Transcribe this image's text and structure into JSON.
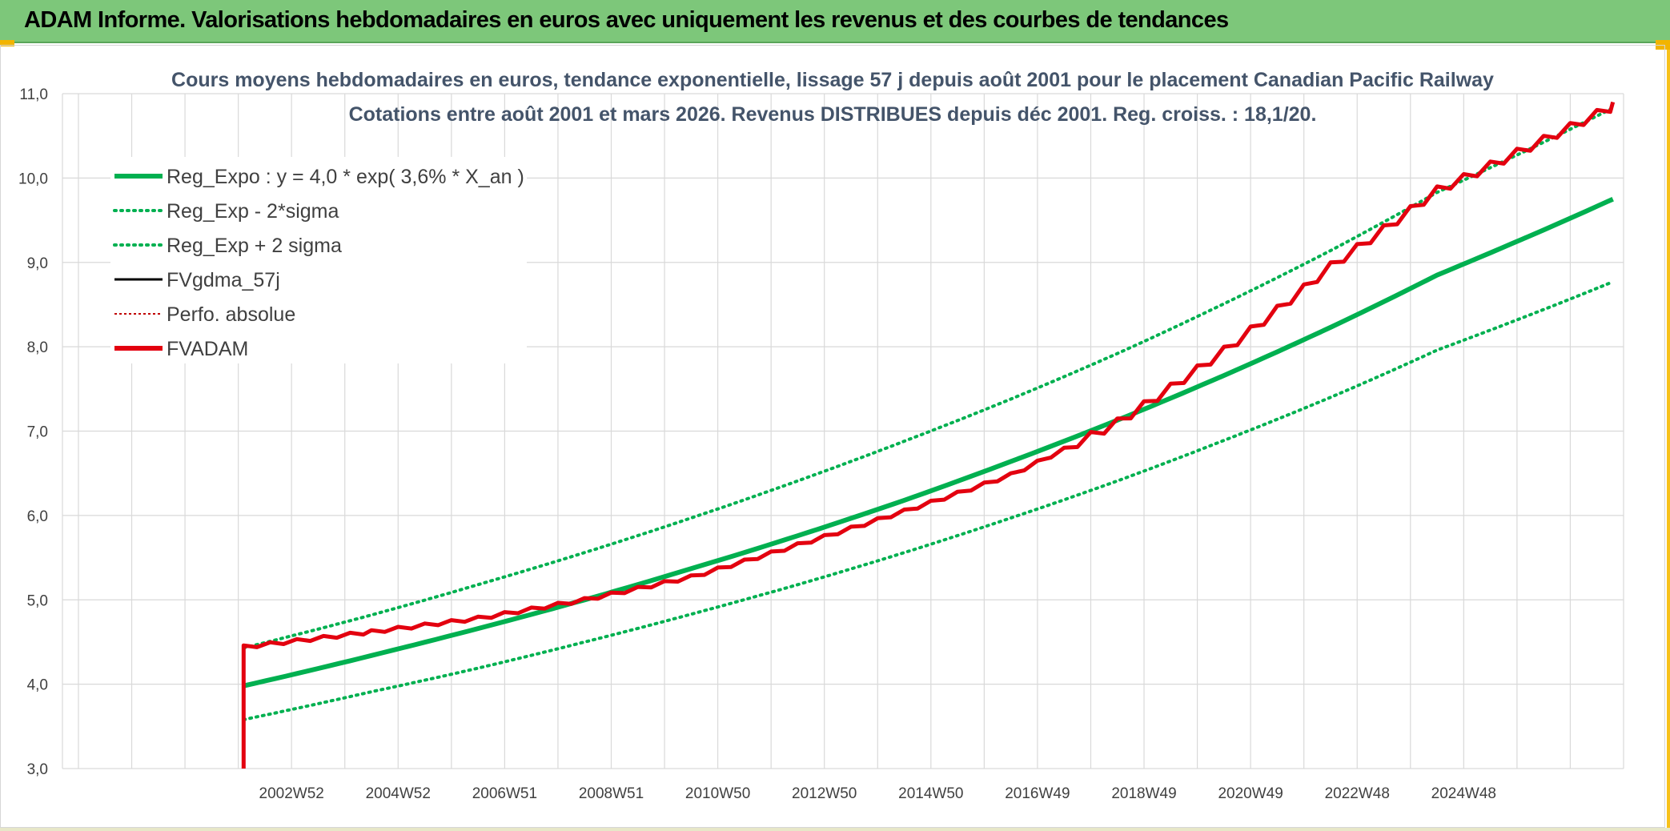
{
  "header": {
    "title": "ADAM Informe. Valorisations hebdomadaires en euros avec uniquement les revenus et des courbes de tendances"
  },
  "colors": {
    "banner": "#7dc77a",
    "reg": "#00b050",
    "fvadam": "#e3000f",
    "perf": "#c00000",
    "grid": "#d9d9d9"
  },
  "chart_data": {
    "type": "line",
    "title": [
      "Cours moyens hebdomadaires en euros, tendance exponentielle, lissage 57 j depuis août 2001 pour le placement Canadian Pacific Railway",
      "Cotations entre août 2001 et mars 2026. Revenus DISTRIBUES depuis déc 2001. Reg. croiss. : 18,1/20."
    ],
    "xlabel": "",
    "ylabel": "",
    "ylim": [
      3.0,
      11.0
    ],
    "xlim": [
      1998.2,
      2027.5
    ],
    "y_ticks": [
      "3,0",
      "4,0",
      "5,0",
      "6,0",
      "7,0",
      "8,0",
      "9,0",
      "10,0",
      "11,0"
    ],
    "x_ticks": [
      {
        "label": "2002W52",
        "x": 2002.5
      },
      {
        "label": "2004W52",
        "x": 2004.5
      },
      {
        "label": "2006W51",
        "x": 2006.5
      },
      {
        "label": "2008W51",
        "x": 2008.5
      },
      {
        "label": "2010W50",
        "x": 2010.5
      },
      {
        "label": "2012W50",
        "x": 2012.5
      },
      {
        "label": "2014W50",
        "x": 2014.5
      },
      {
        "label": "2016W49",
        "x": 2016.5
      },
      {
        "label": "2018W49",
        "x": 2018.5
      },
      {
        "label": "2020W49",
        "x": 2020.5
      },
      {
        "label": "2022W48",
        "x": 2022.5
      },
      {
        "label": "2024W48",
        "x": 2024.5
      }
    ],
    "legend": [
      {
        "label": "Reg_Expo : y = 4,0 * exp( 3,6% *  X_an )",
        "style": "solid-thick",
        "color": "#00b050"
      },
      {
        "label": "Reg_Exp - 2*sigma",
        "style": "dotted",
        "color": "#00b050"
      },
      {
        "label": "Reg_Exp + 2 sigma",
        "style": "dotted",
        "color": "#00b050"
      },
      {
        "label": "FVgdma_57j",
        "style": "solid",
        "color": "#000000"
      },
      {
        "label": "Perfo. absolue",
        "style": "dotted-thin",
        "color": "#c00000"
      },
      {
        "label": "FVADAM",
        "style": "solid-thick",
        "color": "#e3000f"
      }
    ],
    "series": [
      {
        "name": "Reg_Expo",
        "x": [
          2001.6,
          2004,
          2006,
          2008,
          2010,
          2012,
          2014,
          2016,
          2018,
          2020,
          2022,
          2024,
          2027.3
        ],
        "values": [
          3.98,
          4.34,
          4.66,
          5.0,
          5.37,
          5.76,
          6.18,
          6.64,
          7.13,
          7.66,
          8.23,
          8.85,
          9.75
        ]
      },
      {
        "name": "Reg_Exp - 2*sigma",
        "x": [
          2001.6,
          2004,
          2006,
          2008,
          2010,
          2012,
          2014,
          2016,
          2018,
          2020,
          2022,
          2024,
          2027.3
        ],
        "values": [
          3.58,
          3.91,
          4.19,
          4.5,
          4.83,
          5.18,
          5.56,
          5.97,
          6.41,
          6.89,
          7.4,
          7.96,
          8.77
        ]
      },
      {
        "name": "Reg_Exp + 2 sigma",
        "x": [
          2001.6,
          2004,
          2006,
          2008,
          2010,
          2012,
          2014,
          2016,
          2018,
          2020,
          2022,
          2024,
          2027.3
        ],
        "values": [
          4.43,
          4.82,
          5.18,
          5.56,
          5.97,
          6.41,
          6.88,
          7.38,
          7.92,
          8.51,
          9.14,
          9.83,
          10.83
        ]
      },
      {
        "name": "FVADAM",
        "x": [
          2001.6,
          2001.6,
          2004,
          2006,
          2008,
          2010,
          2012,
          2014,
          2016,
          2018,
          2020,
          2022,
          2024,
          2026,
          2027.3
        ],
        "values": [
          3.0,
          4.44,
          4.62,
          4.78,
          5.0,
          5.27,
          5.65,
          6.05,
          6.48,
          7.1,
          7.95,
          8.95,
          9.85,
          10.45,
          10.85
        ]
      }
    ]
  }
}
